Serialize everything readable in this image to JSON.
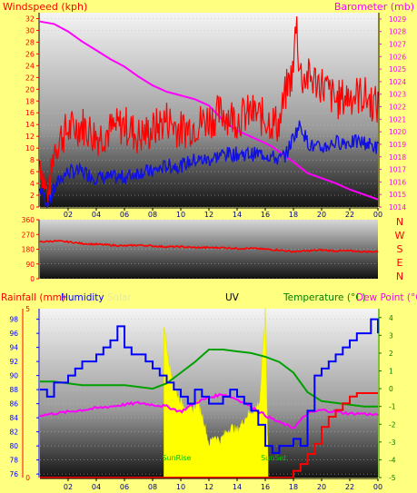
{
  "colors": {
    "background": "#ffff80",
    "windspeed": "#ff0000",
    "barometer": "#ff00ff",
    "winddir": "#ff0000",
    "rainfall": "#ff0000",
    "humidity": "#0000ff",
    "solar": "#ffff00",
    "temperature": "#00a000",
    "dewpoint": "#ff00ff",
    "sunmarker": "#00c000"
  },
  "chart_data": [
    {
      "type": "line",
      "title": "",
      "legend": {
        "left": "Windspeed (kph)",
        "center": "",
        "right": "Barometer (mb)"
      },
      "x_ticks": [
        "02",
        "04",
        "06",
        "08",
        "10",
        "12",
        "14",
        "16",
        "18",
        "20",
        "22",
        "00"
      ],
      "xlim": [
        0,
        24
      ],
      "ylim_left": [
        0,
        33
      ],
      "ylim_right": [
        1014,
        1029.5
      ],
      "y_ticks_left": [
        "0",
        "2",
        "4",
        "6",
        "8",
        "10",
        "12",
        "14",
        "16",
        "18",
        "20",
        "22",
        "24",
        "26",
        "28",
        "30",
        "32"
      ],
      "y_ticks_right": [
        "1014",
        "1015",
        "1016",
        "1017",
        "1018",
        "1019",
        "1020",
        "1021",
        "1022",
        "1023",
        "1024",
        "1025",
        "1026",
        "1027",
        "1028",
        "1029"
      ],
      "series": [
        {
          "name": "Barometer",
          "axis": "right",
          "x": [
            0,
            1,
            2,
            3,
            4,
            5,
            6,
            7,
            8,
            9,
            10,
            11,
            12,
            12.5,
            13,
            14,
            15,
            16,
            16.5,
            17,
            18,
            19,
            20,
            21,
            22,
            23,
            24
          ],
          "values": [
            1028.8,
            1028.6,
            1028.0,
            1027.2,
            1026.5,
            1025.8,
            1025.2,
            1024.4,
            1023.7,
            1023.2,
            1022.9,
            1022.6,
            1022.1,
            1021.5,
            1020.9,
            1020.1,
            1019.6,
            1019.1,
            1018.8,
            1018.4,
            1017.6,
            1016.7,
            1016.3,
            1015.9,
            1015.4,
            1015.0,
            1014.6
          ]
        },
        {
          "name": "Windspeed gust",
          "axis": "left",
          "x": [
            0,
            0.6,
            1,
            1.5,
            2,
            3,
            4,
            5,
            6,
            7,
            8,
            9,
            10,
            11,
            12,
            13,
            14,
            15,
            16,
            17,
            17.5,
            18,
            18.2,
            18.4,
            18.6,
            19,
            20,
            21,
            22,
            23,
            24
          ],
          "values": [
            8,
            1,
            10,
            12,
            13,
            14,
            12,
            13,
            14,
            12,
            13,
            15,
            13,
            14,
            15,
            16,
            15,
            16,
            15,
            14,
            20,
            23,
            33,
            24,
            22,
            22,
            21,
            18,
            19,
            19,
            17
          ]
        },
        {
          "name": "Windspeed average",
          "axis": "left",
          "x": [
            0,
            0.6,
            1,
            1.5,
            2,
            3,
            4,
            5,
            6,
            7,
            8,
            9,
            10,
            11,
            12,
            13,
            14,
            15,
            16,
            17,
            17.5,
            18,
            18.5,
            19,
            19.5,
            20,
            21,
            22,
            23,
            24
          ],
          "values": [
            3,
            0.5,
            3,
            5,
            6,
            6,
            5,
            5,
            5,
            6,
            6,
            7,
            7,
            8,
            8,
            9,
            9,
            9,
            9,
            8,
            9,
            12,
            14,
            11,
            10,
            10,
            11,
            11,
            11,
            10
          ]
        }
      ]
    },
    {
      "type": "line",
      "title": "",
      "y_ticks": [
        "0",
        "90",
        "180",
        "270",
        "360"
      ],
      "ylim": [
        0,
        360
      ],
      "xlim": [
        0,
        24
      ],
      "compass_labels": [
        "N",
        "W",
        "S",
        "E",
        "N"
      ],
      "series": [
        {
          "name": "Wind direction",
          "x": [
            0,
            1,
            2,
            3,
            4,
            5,
            6,
            7,
            8,
            9,
            10,
            11,
            12,
            13,
            14,
            15,
            16,
            17,
            18,
            19,
            20,
            21,
            22,
            23,
            24
          ],
          "values": [
            225,
            230,
            225,
            215,
            210,
            205,
            200,
            205,
            200,
            195,
            195,
            190,
            190,
            190,
            185,
            185,
            180,
            175,
            165,
            170,
            175,
            170,
            170,
            165,
            165
          ]
        }
      ]
    },
    {
      "type": "line",
      "title": "",
      "legend": {
        "rain": "Rainfall (mm)",
        "humidity": "Humidity",
        "solar": "Solar",
        "uv": "UV",
        "temperature": "Temperature (°C)",
        "dewpoint": "Dew Point (°C)"
      },
      "x_ticks": [
        "02",
        "04",
        "06",
        "08",
        "10",
        "12",
        "14",
        "16",
        "18",
        "20",
        "22",
        "00"
      ],
      "xlim": [
        0,
        24
      ],
      "humidity_ticks": [
        "76",
        "78",
        "80",
        "82",
        "84",
        "86",
        "88",
        "90",
        "92",
        "94",
        "96",
        "98"
      ],
      "humidity_lim": [
        75.5,
        99.5
      ],
      "temp_ticks": [
        "-5",
        "-4",
        "-3",
        "-2",
        "-1",
        "0",
        "1",
        "2",
        "3",
        "4"
      ],
      "temp_lim": [
        -5,
        4.5
      ],
      "rain_ticks": [
        "0",
        "5"
      ],
      "rain_lim": [
        0,
        5
      ],
      "sunrise_x": 8.8,
      "sunset_x": 16.2,
      "sunrise_label": "SunRise",
      "sunset_label": "SunSet",
      "series": [
        {
          "name": "Humidity",
          "x": [
            0,
            0.5,
            1,
            1.5,
            2,
            2.5,
            3,
            3.5,
            4,
            4.5,
            5,
            5.5,
            6,
            6.5,
            7,
            7.5,
            8,
            8.5,
            9,
            9.5,
            10,
            10.5,
            11,
            11.5,
            12,
            12.5,
            13,
            13.5,
            14,
            14.5,
            15,
            15.5,
            16,
            16.5,
            17,
            17.5,
            18,
            18.5,
            19,
            19.5,
            20,
            20.5,
            21,
            21.5,
            22,
            22.5,
            23,
            23.5,
            24
          ],
          "values": [
            88,
            87,
            89,
            89,
            90,
            91,
            92,
            92,
            93,
            94,
            95,
            97,
            94,
            93,
            93,
            92,
            91,
            90,
            89,
            88,
            87,
            86,
            88,
            87,
            86,
            86,
            87,
            88,
            87,
            86,
            85,
            83,
            80,
            79,
            80,
            80,
            81,
            80,
            85,
            90,
            91,
            92,
            93,
            94,
            95,
            96,
            96,
            98,
            96
          ]
        },
        {
          "name": "Temperature",
          "x": [
            0,
            1,
            2,
            3,
            4,
            5,
            6,
            7,
            8,
            9,
            10,
            11,
            12,
            13,
            14,
            15,
            16,
            17,
            18,
            19,
            20,
            21,
            22,
            23,
            24
          ],
          "values": [
            0.4,
            0.4,
            0.3,
            0.2,
            0.2,
            0.2,
            0.2,
            0.1,
            0.0,
            0.3,
            0.9,
            1.5,
            2.2,
            2.2,
            2.1,
            2.0,
            1.8,
            1.5,
            0.9,
            -0.2,
            -0.7,
            -0.8,
            -0.9,
            -1.0,
            -1.0
          ]
        },
        {
          "name": "Dew Point",
          "x": [
            0,
            1,
            2,
            3,
            4,
            5,
            6,
            7,
            8,
            9,
            10,
            11,
            12,
            13,
            14,
            15,
            16,
            17,
            18,
            19,
            20,
            21,
            22,
            23,
            24
          ],
          "values": [
            -1.5,
            -1.4,
            -1.3,
            -1.2,
            -1.1,
            -1.0,
            -0.9,
            -0.8,
            -0.9,
            -1.0,
            -1.3,
            -0.8,
            -0.5,
            -0.3,
            -0.6,
            -1.0,
            -1.5,
            -1.9,
            -2.2,
            -1.4,
            -1.2,
            -1.3,
            -1.4,
            -1.4,
            -1.5
          ]
        },
        {
          "name": "Rainfall",
          "x": [
            0,
            17.8,
            18.0,
            18.5,
            19.0,
            19.5,
            20.0,
            20.5,
            21.0,
            21.5,
            22.0,
            22.5,
            23.0,
            23.5,
            24.0
          ],
          "values": [
            0,
            0,
            0.2,
            0.4,
            0.7,
            1.0,
            1.5,
            1.8,
            2.0,
            2.2,
            2.4,
            2.5,
            2.5,
            2.5,
            2.5
          ]
        },
        {
          "name": "Solar",
          "x": [
            8.8,
            9.0,
            9.3,
            9.6,
            10.0,
            10.4,
            10.8,
            11.2,
            11.6,
            12.0,
            12.4,
            12.8,
            13.2,
            13.6,
            14.0,
            14.4,
            14.8,
            15.2,
            15.6,
            16.0,
            16.2
          ],
          "values": [
            0.9,
            0.78,
            0.62,
            0.52,
            0.45,
            0.42,
            0.4,
            0.45,
            0.35,
            0.2,
            0.25,
            0.22,
            0.27,
            0.3,
            0.28,
            0.33,
            0.38,
            0.4,
            0.45,
            0.98,
            0.1
          ]
        }
      ]
    }
  ]
}
